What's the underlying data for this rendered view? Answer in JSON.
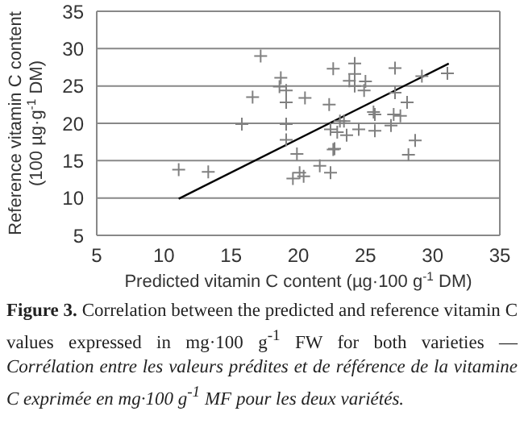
{
  "chart_data": {
    "type": "scatter",
    "xlabel": "Predicted vitamin C content (µg·100 g$^{-1}$ DM)",
    "ylabel": "Reference vitamin C content (100 µg·g$^{-1}$ DM)",
    "annotations": [
      "Figure 3.",
      "Correlation between the predicted and reference vitamin C values expressed in mg·100 g$^{-1}$ FW for both varieties — ",
      "Corrélation entre les valeurs prédites et de référence de la vitamine C exprimée en mg·100 g$^{-1}$ MF pour les deux variétés."
    ],
    "xlim": [
      5,
      35
    ],
    "xticks": [
      5,
      10,
      15,
      20,
      25,
      30,
      35
    ],
    "ylim": [
      5,
      35
    ],
    "yticks": [
      5,
      10,
      15,
      20,
      25,
      30,
      35
    ],
    "grid": "y",
    "marker": "cross",
    "series": [
      {
        "color": "#808080",
        "x": [
          11.1,
          13.3,
          17.2,
          16.6,
          15.8,
          18.7,
          18.6,
          19.1,
          19.1,
          20.5,
          19.1,
          19.1,
          19.9,
          19.6,
          20.1,
          20.4,
          21.6,
          22.4,
          22.6,
          22.3,
          22.4,
          22.9,
          23.1,
          23.4,
          23.6,
          23.8,
          24.2,
          24.2,
          24.2,
          24.5,
          25.0,
          24.9,
          22.7,
          22.6,
          25.6,
          25.7,
          25.7,
          26.9,
          27.1,
          27.6,
          27.2,
          27.2,
          28.1,
          28.7,
          28.2,
          29.2,
          31.1
        ],
        "values": [
          13.8,
          13.5,
          29.0,
          23.5,
          19.9,
          26.1,
          24.9,
          24.4,
          22.8,
          23.4,
          19.9,
          17.8,
          15.9,
          12.6,
          13.4,
          12.9,
          14.3,
          13.4,
          27.3,
          22.5,
          19.2,
          18.8,
          20.3,
          20.3,
          18.4,
          25.7,
          28.0,
          26.6,
          25.0,
          19.2,
          25.6,
          24.4,
          16.6,
          16.5,
          21.5,
          21.2,
          19.0,
          19.7,
          21.2,
          21.0,
          27.4,
          24.1,
          22.8,
          17.7,
          15.8,
          26.3,
          26.7
        ]
      },
      {
        "type": "line",
        "color": "#000000",
        "marker": "none",
        "x": [
          11.1,
          31.2
        ],
        "values": [
          9.9,
          28.0
        ]
      }
    ]
  }
}
